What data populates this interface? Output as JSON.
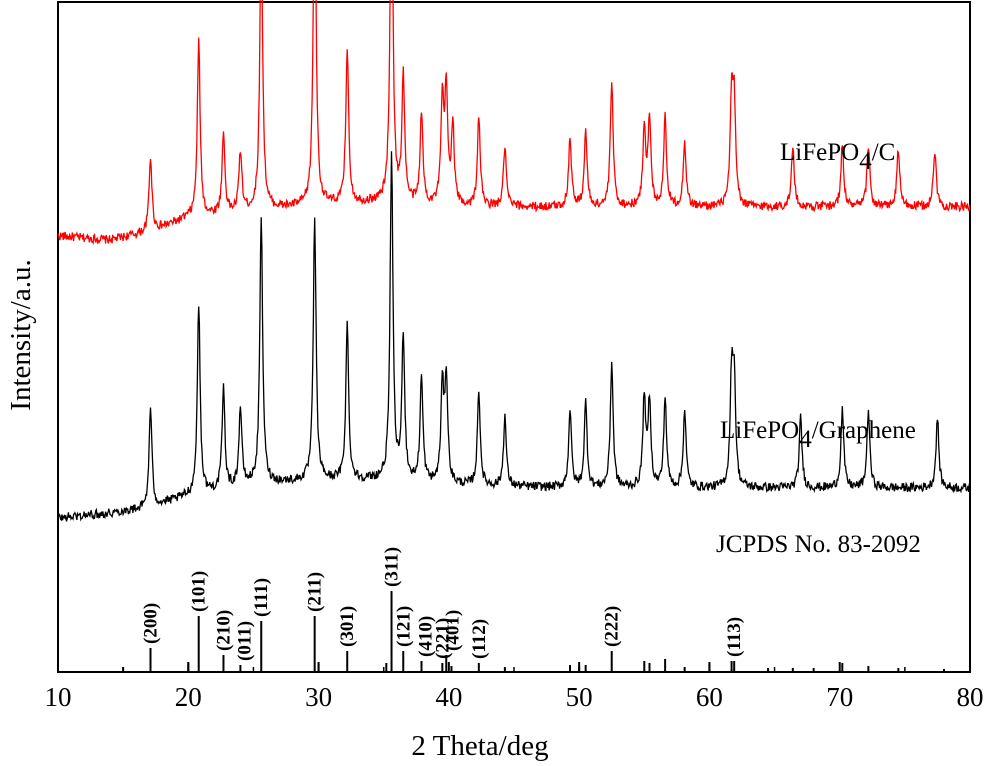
{
  "chart_data": {
    "type": "line",
    "xlabel": "2 Theta/deg",
    "ylabel": "Intensity/a.u.",
    "xlim": [
      10,
      80
    ],
    "x_ticks": [
      10,
      20,
      30,
      40,
      50,
      60,
      70,
      80
    ],
    "y_ticks_shown": false,
    "grid": false,
    "legend": "none (series labelled inline at right)",
    "colors": {
      "lfp_c": "#ff0000",
      "lfp_graphene": "#000000",
      "reference": "#000000"
    },
    "series": [
      {
        "name": "LiFePO4/C",
        "label_main": "LiFePO",
        "label_sub": "4",
        "label_tail": "/C",
        "baseline": [
          [
            10,
            26
          ],
          [
            14,
            22
          ],
          [
            17,
            30
          ],
          [
            20,
            44
          ],
          [
            25,
            52
          ],
          [
            30,
            57
          ],
          [
            35,
            60
          ],
          [
            38,
            57
          ],
          [
            42,
            55
          ],
          [
            50,
            55
          ],
          [
            60,
            55
          ],
          [
            70,
            55
          ],
          [
            80,
            55
          ]
        ],
        "peaks": [
          [
            17.1,
            75
          ],
          [
            20.8,
            175
          ],
          [
            22.7,
            80
          ],
          [
            24.0,
            60
          ],
          [
            25.6,
            285
          ],
          [
            29.7,
            345
          ],
          [
            32.2,
            155
          ],
          [
            35.6,
            355
          ],
          [
            36.5,
            125
          ],
          [
            37.9,
            90
          ],
          [
            39.5,
            100
          ],
          [
            39.8,
            110
          ],
          [
            40.3,
            80
          ],
          [
            42.3,
            90
          ],
          [
            44.3,
            60
          ],
          [
            49.3,
            70
          ],
          [
            50.5,
            75
          ],
          [
            52.5,
            125
          ],
          [
            55.0,
            80
          ],
          [
            55.4,
            85
          ],
          [
            56.6,
            90
          ],
          [
            58.1,
            65
          ],
          [
            61.7,
            100
          ],
          [
            61.9,
            100
          ],
          [
            66.4,
            60
          ],
          [
            70.2,
            62
          ],
          [
            72.2,
            62
          ],
          [
            74.5,
            58
          ],
          [
            77.3,
            57
          ]
        ]
      },
      {
        "name": "LiFePO4/Graphene",
        "label_main": "LiFePO",
        "label_sub": "4",
        "label_tail": "/Graphene",
        "baseline": [
          [
            10,
            30
          ],
          [
            14,
            35
          ],
          [
            17,
            40
          ],
          [
            20,
            52
          ],
          [
            25,
            64
          ],
          [
            30,
            68
          ],
          [
            35,
            68
          ],
          [
            38,
            65
          ],
          [
            42,
            62
          ],
          [
            50,
            60
          ],
          [
            60,
            60
          ],
          [
            70,
            60
          ],
          [
            80,
            60
          ]
        ],
        "peaks": [
          [
            17.1,
            100
          ],
          [
            20.8,
            190
          ],
          [
            22.7,
            100
          ],
          [
            24.0,
            78
          ],
          [
            25.6,
            265
          ],
          [
            29.7,
            260
          ],
          [
            32.2,
            155
          ],
          [
            35.6,
            325
          ],
          [
            36.5,
            145
          ],
          [
            37.9,
            105
          ],
          [
            39.5,
            95
          ],
          [
            39.8,
            105
          ],
          [
            42.3,
            95
          ],
          [
            44.3,
            70
          ],
          [
            49.3,
            78
          ],
          [
            50.5,
            85
          ],
          [
            52.5,
            125
          ],
          [
            55.0,
            90
          ],
          [
            55.4,
            85
          ],
          [
            56.6,
            90
          ],
          [
            58.1,
            78
          ],
          [
            61.7,
            105
          ],
          [
            61.9,
            105
          ],
          [
            67.0,
            70
          ],
          [
            70.2,
            78
          ],
          [
            72.2,
            78
          ],
          [
            77.5,
            70
          ]
        ]
      }
    ],
    "reference": {
      "name": "JCPDS No. 83-2092",
      "sticks": [
        [
          15.0,
          4
        ],
        [
          17.1,
          23
        ],
        [
          20.0,
          8
        ],
        [
          20.8,
          55
        ],
        [
          22.7,
          16
        ],
        [
          24.0,
          6
        ],
        [
          25.6,
          50
        ],
        [
          29.7,
          55
        ],
        [
          30.0,
          7
        ],
        [
          32.2,
          20
        ],
        [
          35.2,
          8
        ],
        [
          35.6,
          80
        ],
        [
          36.5,
          20
        ],
        [
          37.9,
          10
        ],
        [
          39.5,
          8
        ],
        [
          39.8,
          16
        ],
        [
          40.2,
          5
        ],
        [
          42.3,
          8
        ],
        [
          44.3,
          4
        ],
        [
          49.3,
          6
        ],
        [
          50.0,
          5
        ],
        [
          50.5,
          6
        ],
        [
          52.5,
          20
        ],
        [
          55.0,
          10
        ],
        [
          55.4,
          8
        ],
        [
          56.6,
          12
        ],
        [
          58.1,
          4
        ],
        [
          60.0,
          7
        ],
        [
          61.7,
          10
        ],
        [
          61.9,
          10
        ],
        [
          64.5,
          3
        ],
        [
          66.4,
          3
        ],
        [
          68.0,
          3
        ],
        [
          70.2,
          8
        ],
        [
          72.2,
          5
        ],
        [
          74.5,
          3
        ],
        [
          78.0,
          2
        ]
      ],
      "hkl": [
        {
          "hkl": "(200)",
          "x": 17.1
        },
        {
          "hkl": "(101)",
          "x": 20.8
        },
        {
          "hkl": "(210)",
          "x": 22.7
        },
        {
          "hkl": "(011)",
          "x": 24.0
        },
        {
          "hkl": "(111)",
          "x": 25.6
        },
        {
          "hkl": "(211)",
          "x": 29.7
        },
        {
          "hkl": "(301)",
          "x": 32.2
        },
        {
          "hkl": "(311)",
          "x": 35.6
        },
        {
          "hkl": "(121)",
          "x": 36.5
        },
        {
          "hkl": "(410)",
          "x": 37.9
        },
        {
          "hkl": "(221)",
          "x": 39.5
        },
        {
          "hkl": "(401)",
          "x": 39.8
        },
        {
          "hkl": "(112)",
          "x": 42.3
        },
        {
          "hkl": "(222)",
          "x": 52.5
        },
        {
          "hkl": "(113)",
          "x": 61.9
        }
      ]
    }
  }
}
